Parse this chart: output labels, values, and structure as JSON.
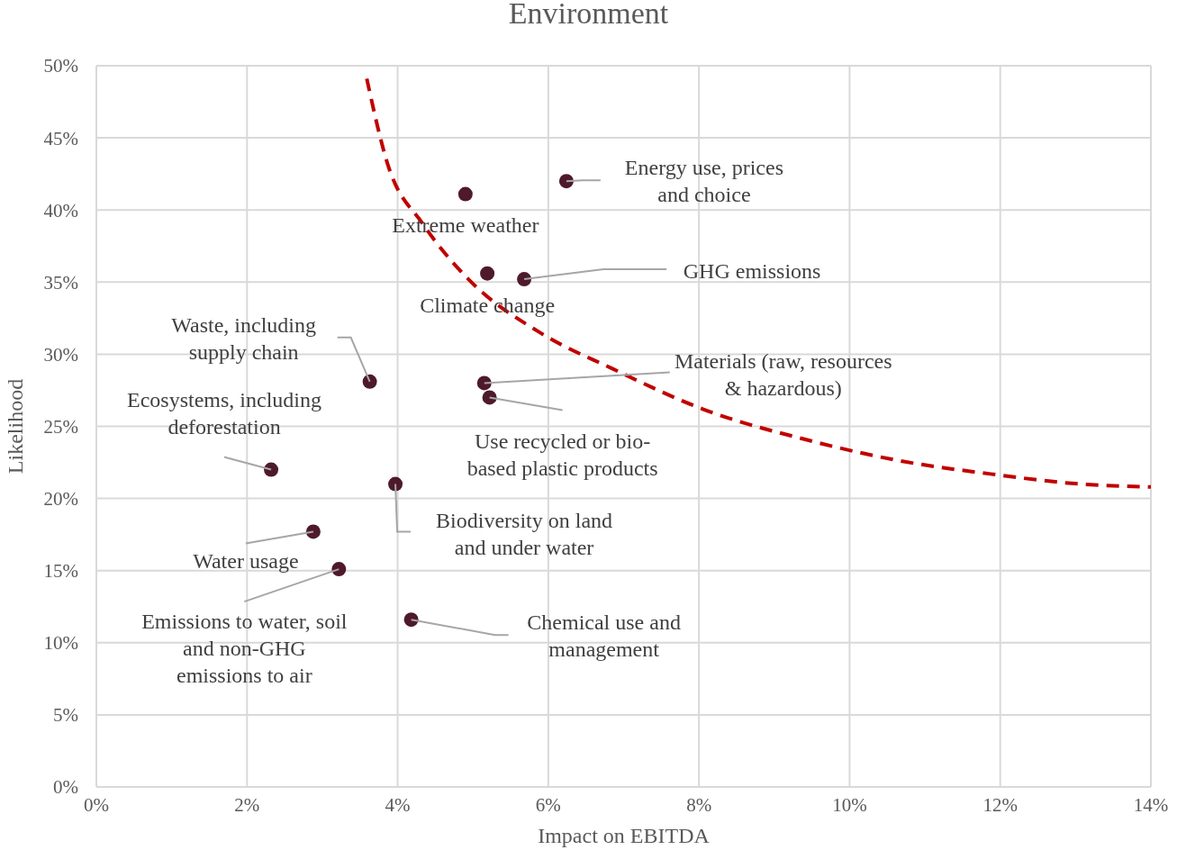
{
  "chart_data": {
    "type": "scatter",
    "title": "Environment",
    "xlabel": "Impact on EBITDA",
    "ylabel": "Likelihood",
    "xlim": [
      0,
      14
    ],
    "ylim": [
      0,
      50
    ],
    "xticks": [
      {
        "value": 0,
        "label": "0%"
      },
      {
        "value": 2,
        "label": "2%"
      },
      {
        "value": 4,
        "label": "4%"
      },
      {
        "value": 6,
        "label": "6%"
      },
      {
        "value": 8,
        "label": "8%"
      },
      {
        "value": 10,
        "label": "10%"
      },
      {
        "value": 12,
        "label": "12%"
      },
      {
        "value": 14,
        "label": "14%"
      }
    ],
    "yticks": [
      {
        "value": 0,
        "label": "0%"
      },
      {
        "value": 5,
        "label": "5%"
      },
      {
        "value": 10,
        "label": "10%"
      },
      {
        "value": 15,
        "label": "15%"
      },
      {
        "value": 20,
        "label": "20%"
      },
      {
        "value": 25,
        "label": "25%"
      },
      {
        "value": 30,
        "label": "30%"
      },
      {
        "value": 35,
        "label": "35%"
      },
      {
        "value": 40,
        "label": "40%"
      },
      {
        "value": 45,
        "label": "45%"
      },
      {
        "value": 50,
        "label": "50%"
      }
    ],
    "grid": true,
    "series": [
      {
        "marker": "circle",
        "color": "#4e1a2b",
        "x": [
          6.24,
          4.9,
          5.19,
          5.68,
          3.63,
          5.15,
          5.22,
          2.32,
          3.97,
          2.88,
          3.22,
          4.18
        ],
        "values": [
          42.0,
          41.1,
          35.6,
          35.2,
          28.1,
          28.0,
          27.0,
          22.0,
          21.0,
          17.7,
          15.1,
          11.6
        ]
      },
      {
        "type": "line",
        "color": "#c00000",
        "line_style": "dashed",
        "x": [
          3.59,
          3.86,
          4.34,
          4.94,
          5.89,
          6.85,
          8.05,
          9.48,
          10.68,
          11.87,
          13.07,
          14
        ],
        "values": [
          49.1,
          43.3,
          39.0,
          35.2,
          31.5,
          29.0,
          26.2,
          24.0,
          22.6,
          21.7,
          21.0,
          20.8
        ]
      }
    ],
    "annotations": [
      {
        "text": "Energy use, prices and choice",
        "x": 6.24,
        "y": 42.0
      },
      {
        "text": "Extreme weather",
        "x": 4.9,
        "y": 41.1
      },
      {
        "text": "Climate change",
        "x": 5.19,
        "y": 35.6
      },
      {
        "text": "GHG emissions",
        "x": 5.68,
        "y": 35.2
      },
      {
        "text": "Waste, including supply chain",
        "x": 3.63,
        "y": 28.1
      },
      {
        "text": "Materials (raw, resources & hazardous)",
        "x": 5.15,
        "y": 28.0
      },
      {
        "text": "Use recycled or bio-based plastic products",
        "x": 5.22,
        "y": 27.0
      },
      {
        "text": "Ecosystems, including deforestation",
        "x": 2.32,
        "y": 22.0
      },
      {
        "text": "Biodiversity on land and under water",
        "x": 3.97,
        "y": 21.0
      },
      {
        "text": "Water usage",
        "x": 2.88,
        "y": 17.7
      },
      {
        "text": "Emissions to water, soil and non-GHG emissions to air",
        "x": 3.22,
        "y": 15.1
      },
      {
        "text": "Chemical use and management",
        "x": 4.18,
        "y": 11.6
      }
    ]
  }
}
